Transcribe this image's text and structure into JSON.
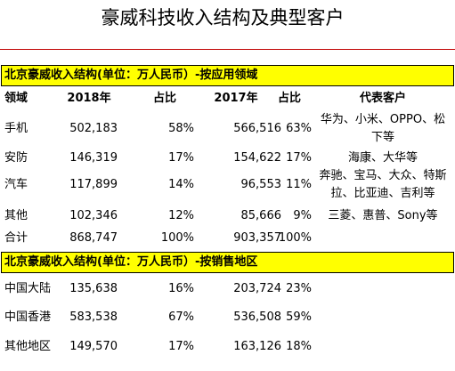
{
  "title": "豪威科技收入结构及典型客户",
  "section1": {
    "heading": "北京豪威收入结构(单位：万人民币）-按应用领域",
    "columns": [
      "领域",
      "2018年",
      "占比",
      "2017年",
      "占比",
      "代表客户"
    ],
    "rows": [
      [
        "手机",
        "502,183",
        "58%",
        "566,516",
        "63%"
      ],
      [
        "安防",
        "146,319",
        "17%",
        "154,622",
        "17%"
      ],
      [
        "汽车",
        "117,899",
        "14%",
        "96,553",
        "11%"
      ],
      [
        "其他",
        "102,346",
        "12%",
        "85,666",
        "9%"
      ],
      [
        "合计",
        "868,747",
        "100%",
        "903,357",
        "100%"
      ]
    ],
    "customers": [
      [
        "华为、小米、OPPO、松",
        "下等"
      ],
      [
        "海康、大华等"
      ],
      [
        "奔驰、宝马、大众、特斯",
        "拉、比亚迪、吉利等"
      ],
      [
        "三菱、惠普、Sony等"
      ]
    ]
  },
  "section2": {
    "heading": "北京豪威收入结构(单位：万人民币）-按销售地区",
    "rows": [
      [
        "中国大陆",
        "135,638",
        "16%",
        "203,724",
        "23%"
      ],
      [
        "中国香港",
        "583,538",
        "67%",
        "536,508",
        "59%"
      ],
      [
        "其他地区",
        "149,570",
        "17%",
        "163,126",
        "18%"
      ]
    ]
  }
}
